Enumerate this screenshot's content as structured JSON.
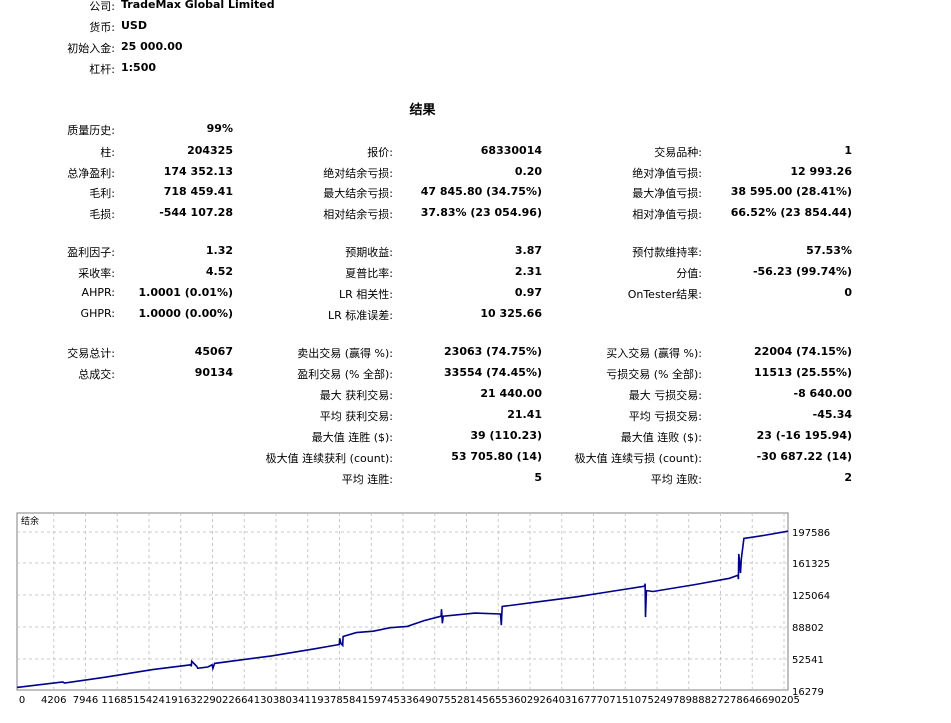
{
  "header": [
    {
      "label": "公司:",
      "value": "TradeMax Global Limited"
    },
    {
      "label": "货币:",
      "value": "USD"
    },
    {
      "label": "初始入金:",
      "value": "25 000.00"
    },
    {
      "label": "杠杆:",
      "value": "1:500"
    }
  ],
  "results_title": "结果",
  "rows": [
    {
      "c1": {
        "label": "质量历史:",
        "value": "99%"
      },
      "c2": null,
      "c3": null
    },
    {
      "c1": {
        "label": "柱:",
        "value": "204325"
      },
      "c2": {
        "label": "报价:",
        "value": "68330014"
      },
      "c3": {
        "label": "交易品种:",
        "value": "1"
      }
    },
    {
      "c1": {
        "label": "总净盈利:",
        "value": "174 352.13"
      },
      "c2": {
        "label": "绝对结余亏损:",
        "value": "0.20"
      },
      "c3": {
        "label": "绝对净值亏损:",
        "value": "12 993.26"
      }
    },
    {
      "c1": {
        "label": "毛利:",
        "value": "718 459.41"
      },
      "c2": {
        "label": "最大结余亏损:",
        "value": "47 845.80 (34.75%)"
      },
      "c3": {
        "label": "最大净值亏损:",
        "value": "38 595.00 (28.41%)"
      }
    },
    {
      "c1": {
        "label": "毛损:",
        "value": "-544 107.28"
      },
      "c2": {
        "label": "相对结余亏损:",
        "value": "37.83% (23 054.96)"
      },
      "c3": {
        "label": "相对净值亏损:",
        "value": "66.52% (23 854.44)"
      }
    },
    {
      "c1": {
        "label": "盈利因子:",
        "value": "1.32"
      },
      "c2": {
        "label": "预期收益:",
        "value": "3.87"
      },
      "c3": {
        "label": "预付款维持率:",
        "value": "57.53%"
      }
    },
    {
      "c1": {
        "label": "采收率:",
        "value": "4.52"
      },
      "c2": {
        "label": "夏普比率:",
        "value": "2.31"
      },
      "c3": {
        "label": "分值:",
        "value": "-56.23 (99.74%)"
      }
    },
    {
      "c1": {
        "label": "AHPR:",
        "value": "1.0001 (0.01%)"
      },
      "c2": {
        "label": "LR 相关性:",
        "value": "0.97"
      },
      "c3": {
        "label": "OnTester结果:",
        "value": "0"
      }
    },
    {
      "c1": {
        "label": "GHPR:",
        "value": "1.0000 (0.00%)"
      },
      "c2": {
        "label": "LR 标准误差:",
        "value": "10 325.66"
      },
      "c3": null
    },
    {
      "c1": {
        "label": "交易总计:",
        "value": "45067"
      },
      "c2": {
        "label": "卖出交易 (赢得 %):",
        "value": "23063 (74.75%)"
      },
      "c3": {
        "label": "买入交易 (赢得 %):",
        "value": "22004 (74.15%)"
      }
    },
    {
      "c1": {
        "label": "总成交:",
        "value": "90134"
      },
      "c2": {
        "label": "盈利交易 (% 全部):",
        "value": "33554 (74.45%)"
      },
      "c3": {
        "label": "亏损交易 (% 全部):",
        "value": "11513 (25.55%)"
      }
    },
    {
      "c1": null,
      "c2": {
        "label": "最大 获利交易:",
        "value": "21 440.00"
      },
      "c3": {
        "label": "最大 亏损交易:",
        "value": "-8 640.00"
      }
    },
    {
      "c1": null,
      "c2": {
        "label": "平均 获利交易:",
        "value": "21.41"
      },
      "c3": {
        "label": "平均 亏损交易:",
        "value": "-45.34"
      }
    },
    {
      "c1": null,
      "c2": {
        "label": "最大值 连胜 ($):",
        "value": "39 (110.23)"
      },
      "c3": {
        "label": "最大值 连败 ($):",
        "value": "23 (-16 195.94)"
      }
    },
    {
      "c1": null,
      "c2": {
        "label": "极大值 连续获利 (count):",
        "value": "53 705.80 (14)"
      },
      "c3": {
        "label": "极大值 连续亏损 (count):",
        "value": "-30 687.22 (14)"
      }
    },
    {
      "c1": null,
      "c2": {
        "label": "平均 连胜:",
        "value": "5"
      },
      "c3": {
        "label": "平均 连败:",
        "value": "2"
      }
    }
  ],
  "chart_data": {
    "type": "line",
    "series": [
      {
        "name": "结余",
        "color": "#00008b"
      }
    ],
    "legend": "top-left",
    "grid": true,
    "xticks": [
      0,
      4206,
      7946,
      11685,
      15424,
      19163,
      22902,
      26641,
      30380,
      34119,
      37858,
      41597,
      45336,
      49075,
      52814,
      56553,
      60292,
      64031,
      67770,
      71510,
      75249,
      78988,
      82727,
      86466,
      90205
    ],
    "yticks": [
      16279,
      52541,
      88802,
      125064,
      161325,
      197586
    ],
    "xlim": [
      0,
      90900
    ],
    "ylim": [
      16279,
      197586
    ],
    "points": [
      [
        0,
        20400
      ],
      [
        5400,
        26500
      ],
      [
        5600,
        25200
      ],
      [
        10500,
        32000
      ],
      [
        16000,
        40500
      ],
      [
        20500,
        46000
      ],
      [
        20550,
        44000
      ],
      [
        20600,
        50000
      ],
      [
        21200,
        44200
      ],
      [
        21300,
        42000
      ],
      [
        22500,
        43500
      ],
      [
        23000,
        46000
      ],
      [
        23100,
        42000
      ],
      [
        23300,
        47500
      ],
      [
        30000,
        56000
      ],
      [
        35000,
        64000
      ],
      [
        38000,
        69000
      ],
      [
        38050,
        76000
      ],
      [
        38200,
        70000
      ],
      [
        38400,
        68000
      ],
      [
        38450,
        78000
      ],
      [
        40000,
        82500
      ],
      [
        42000,
        84000
      ],
      [
        44000,
        88000
      ],
      [
        46000,
        89500
      ],
      [
        48000,
        96000
      ],
      [
        50000,
        101000
      ],
      [
        50050,
        109000
      ],
      [
        50150,
        93000
      ],
      [
        50250,
        101000
      ],
      [
        54000,
        104500
      ],
      [
        57000,
        103500
      ],
      [
        57100,
        91000
      ],
      [
        57200,
        112000
      ],
      [
        62000,
        118000
      ],
      [
        66000,
        123000
      ],
      [
        70000,
        129000
      ],
      [
        74000,
        135000
      ],
      [
        74050,
        138000
      ],
      [
        74100,
        100000
      ],
      [
        74200,
        130000
      ],
      [
        75000,
        129000
      ],
      [
        80000,
        137000
      ],
      [
        84000,
        144000
      ],
      [
        85000,
        147500
      ],
      [
        85050,
        143000
      ],
      [
        85100,
        172000
      ],
      [
        85300,
        150000
      ],
      [
        85400,
        166000
      ],
      [
        85700,
        190000
      ],
      [
        88000,
        193500
      ],
      [
        90900,
        198500
      ]
    ]
  }
}
